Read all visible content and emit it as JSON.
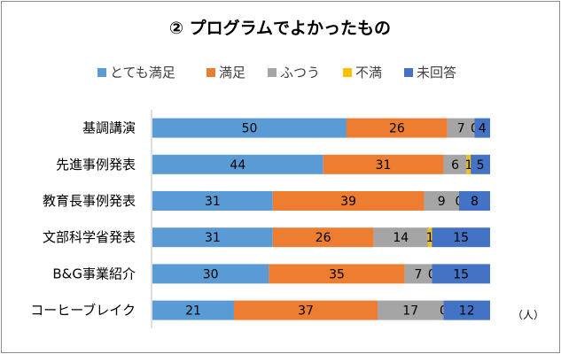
{
  "chart_data": {
    "type": "bar",
    "orientation": "horizontal",
    "stacked": true,
    "title": "② プログラムでよかったもの",
    "unit_label": "（人）",
    "categories": [
      "基調講演",
      "先進事例発表",
      "教育長事例発表",
      "文部科学省発表",
      "B&G事業紹介",
      "コーヒーブレイク"
    ],
    "series": [
      {
        "name": "とても満足",
        "color": "#5b9bd5",
        "values": [
          50,
          44,
          31,
          31,
          30,
          21
        ]
      },
      {
        "name": "満足",
        "color": "#ed7d31",
        "values": [
          26,
          31,
          39,
          26,
          35,
          37
        ]
      },
      {
        "name": "ふつう",
        "color": "#a5a5a5",
        "values": [
          7,
          6,
          9,
          14,
          7,
          17
        ]
      },
      {
        "name": "不満",
        "color": "#ffc000",
        "values": [
          0,
          1,
          0,
          1,
          0,
          0
        ]
      },
      {
        "name": "未回答",
        "color": "#4472c4",
        "values": [
          4,
          5,
          8,
          15,
          15,
          12
        ]
      }
    ],
    "xlim": [
      0,
      87
    ],
    "legend_position": "top",
    "grid": false
  }
}
